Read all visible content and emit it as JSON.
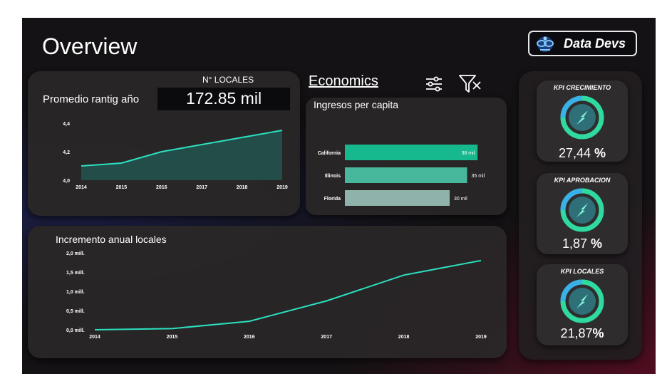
{
  "header": {
    "title": "Overview",
    "brand": "Data Devs"
  },
  "locales_card": {
    "label": "N° LOCALES",
    "value": "172.85 mil"
  },
  "rating_chart": {
    "title": "Promedio rantig año"
  },
  "economics": {
    "tab_label": "Economics",
    "filter_icon": "sliders-icon",
    "clear_filter_icon": "filter-clear-icon"
  },
  "income_chart": {
    "title": "Ingresos per capita"
  },
  "growth_chart": {
    "title": "Incremento anual locales"
  },
  "kpis": [
    {
      "title": "KPI CRECIMIENTO",
      "value": "27,44",
      "unit": "%"
    },
    {
      "title": "KPI APROBACION",
      "value": "1,87",
      "unit": "%"
    },
    {
      "title": "KPI  LOCALES",
      "value": "21,87",
      "unit": "%"
    }
  ],
  "colors": {
    "accent": "#2be0c0",
    "bar1": "#16b88e",
    "bar2": "#48b89c",
    "bar3": "#8fb3aa"
  },
  "chart_data": [
    {
      "type": "area",
      "title": "Promedio rantig año",
      "x": [
        "2014",
        "2015",
        "2016",
        "2017",
        "2018",
        "2019"
      ],
      "y_ticks": [
        "4,0",
        "4,2",
        "4,4"
      ],
      "ylim": [
        4.0,
        4.4
      ],
      "series": [
        {
          "values": [
            4.1,
            4.12,
            4.2,
            4.25,
            4.3,
            4.35
          ]
        }
      ],
      "grid": false
    },
    {
      "type": "bar",
      "orientation": "horizontal",
      "title": "Ingresos per capita",
      "categories": [
        "California",
        "Illinois",
        "Florida"
      ],
      "values": [
        38,
        35,
        30
      ],
      "value_labels": [
        "38 mil",
        "35 mil",
        "30 mil"
      ],
      "x_ticks": [
        "0 mil",
        "10 mil",
        "20 mil",
        "30 mil",
        "40 mil"
      ],
      "xlim": [
        0,
        40
      ],
      "grid": false
    },
    {
      "type": "line",
      "title": "Incremento anual locales",
      "x": [
        "2014",
        "2015",
        "2016",
        "2017",
        "2018",
        "2019"
      ],
      "y_ticks": [
        "0,0 mill.",
        "0,5 mill.",
        "1,0 mill.",
        "1,5 mill.",
        "2,0 mill."
      ],
      "ylim": [
        0,
        2.0
      ],
      "series": [
        {
          "values": [
            0.0,
            0.03,
            0.22,
            0.75,
            1.42,
            1.8
          ]
        }
      ],
      "grid": false
    }
  ]
}
